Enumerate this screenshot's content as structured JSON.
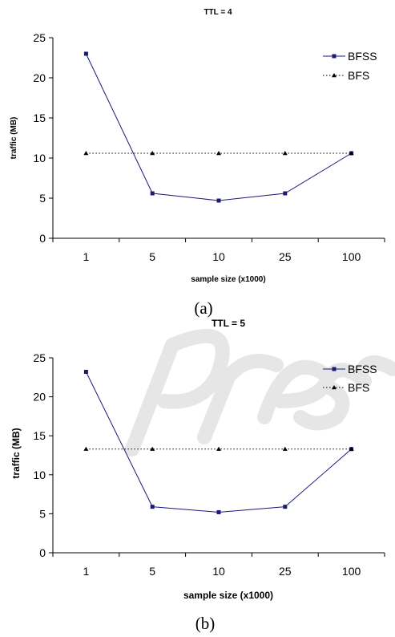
{
  "chart_data": [
    {
      "type": "line",
      "title": "TTL = 4",
      "xlabel": "sample size (x1000)",
      "ylabel": "traffic (MB)",
      "categories": [
        "1",
        "5",
        "10",
        "25",
        "100"
      ],
      "ylim": [
        0,
        25
      ],
      "yticks": [
        "0",
        "5",
        "10",
        "15",
        "20",
        "25"
      ],
      "legend_position": "top-right",
      "series": [
        {
          "name": "BFSS",
          "values": [
            23.0,
            5.6,
            4.7,
            5.6,
            10.6
          ],
          "color": "#1a1a7a",
          "marker": "square",
          "line": "solid"
        },
        {
          "name": "BFS",
          "values": [
            10.6,
            10.6,
            10.6,
            10.6,
            10.6
          ],
          "color": "#000000",
          "marker": "triangle",
          "line": "dotted"
        }
      ],
      "caption": "(a)"
    },
    {
      "type": "line",
      "title": "TTL = 5",
      "xlabel": "sample size (x1000)",
      "ylabel": "traffic (MB)",
      "categories": [
        "1",
        "5",
        "10",
        "25",
        "100"
      ],
      "ylim": [
        0,
        25
      ],
      "yticks": [
        "0",
        "5",
        "10",
        "15",
        "20",
        "25"
      ],
      "legend_position": "top-right",
      "series": [
        {
          "name": "BFSS",
          "values": [
            23.2,
            5.9,
            5.2,
            5.9,
            13.3
          ],
          "color": "#1a1a7a",
          "marker": "square",
          "line": "solid"
        },
        {
          "name": "BFS",
          "values": [
            13.3,
            13.3,
            13.3,
            13.3,
            13.3
          ],
          "color": "#000000",
          "marker": "triangle",
          "line": "dotted"
        }
      ],
      "caption": "(b)"
    }
  ]
}
